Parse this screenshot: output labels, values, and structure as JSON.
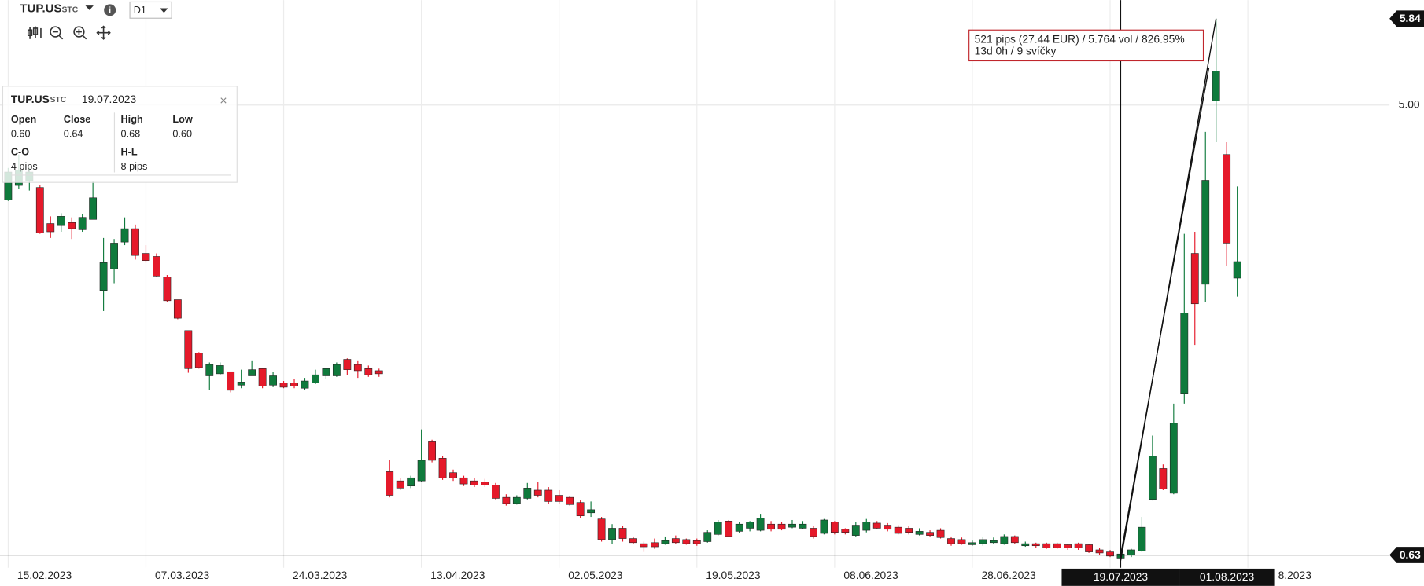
{
  "toolbar": {
    "symbol": "TUP.US",
    "market": "STC",
    "timeframe": "D1"
  },
  "tooltip": {
    "symbol": "TUP.US",
    "market": "STC",
    "date": "19.07.2023",
    "labels": [
      "Open",
      "Close",
      "High",
      "Low"
    ],
    "values": [
      "0.60",
      "0.64",
      "0.68",
      "0.60"
    ],
    "co_label": "C-O",
    "co_value": "4 pips",
    "hl_label": "H-L",
    "hl_value": "8 pips"
  },
  "measure": {
    "lines": [
      "521 pips (27.44 EUR) / 5.764 vol / 826.95%",
      "13d 0h / 9 svíčky"
    ]
  },
  "chart_data": {
    "type": "candlestick",
    "up_color": "#0f7a3c",
    "down_color": "#e5192a",
    "ylim": [
      0.33,
      6.02
    ],
    "yticks": [
      {
        "value": 5,
        "label": "5.00"
      }
    ],
    "grid": true,
    "crosshair_price": 0.63,
    "peak_price": 5.84,
    "categories": [
      "15.02.2023",
      null,
      null,
      null,
      null,
      null,
      null,
      null,
      null,
      null,
      null,
      null,
      null,
      "07.03.2023",
      null,
      null,
      null,
      null,
      null,
      null,
      null,
      null,
      null,
      null,
      null,
      null,
      "24.03.2023",
      null,
      null,
      null,
      null,
      null,
      null,
      null,
      null,
      null,
      null,
      null,
      null,
      "13.04.2023",
      null,
      null,
      null,
      null,
      null,
      null,
      null,
      null,
      null,
      null,
      null,
      null,
      "02.05.2023",
      null,
      null,
      null,
      null,
      null,
      null,
      null,
      null,
      null,
      null,
      null,
      null,
      "19.05.2023",
      null,
      null,
      null,
      null,
      null,
      null,
      null,
      null,
      null,
      null,
      null,
      null,
      "08.06.2023",
      null,
      null,
      null,
      null,
      null,
      null,
      null,
      null,
      null,
      null,
      null,
      null,
      "28.06.2023",
      null,
      null,
      null,
      null,
      null,
      null,
      null,
      null,
      null,
      null,
      null,
      null,
      null,
      "19.07.2023",
      null,
      null,
      null,
      null,
      null,
      null,
      null,
      null,
      "01.08.2023",
      null,
      null,
      "8.2023"
    ],
    "open": [
      4.08,
      4.22,
      4.26,
      4.2,
      3.85,
      3.83,
      3.86,
      3.79,
      3.89,
      3.2,
      3.41,
      3.67,
      3.8,
      3.56,
      3.53,
      3.33,
      3.11,
      2.81,
      2.59,
      2.37,
      2.39,
      2.41,
      2.28,
      2.37,
      2.44,
      2.28,
      2.3,
      2.3,
      2.25,
      2.3,
      2.37,
      2.37,
      2.53,
      2.48,
      2.44,
      2.42,
      1.44,
      1.35,
      1.3,
      1.35,
      1.73,
      1.57,
      1.43,
      1.38,
      1.35,
      1.34,
      1.31,
      1.19,
      1.13,
      1.18,
      1.26,
      1.26,
      1.21,
      1.19,
      1.14,
      1.04,
      0.98,
      0.78,
      0.89,
      0.79,
      0.74,
      0.75,
      0.74,
      0.79,
      0.78,
      0.77,
      0.76,
      0.83,
      0.96,
      0.86,
      0.89,
      0.87,
      0.93,
      0.93,
      0.9,
      0.89,
      0.89,
      0.84,
      0.95,
      0.88,
      0.82,
      0.87,
      0.94,
      0.92,
      0.9,
      0.89,
      0.83,
      0.85,
      0.87,
      0.79,
      0.78,
      0.73,
      0.74,
      0.75,
      0.74,
      0.81,
      0.72,
      0.74,
      0.74,
      0.74,
      0.73,
      0.74,
      0.73,
      0.68,
      0.66,
      0.6,
      0.63,
      0.67,
      1.17,
      1.47,
      1.23,
      2.2,
      3.56,
      3.26,
      5.04,
      4.52,
      3.32,
      null
    ],
    "high": [
      4.39,
      4.52,
      4.39,
      4.22,
      3.92,
      3.95,
      3.91,
      3.94,
      4.26,
      3.71,
      3.7,
      3.91,
      3.84,
      3.64,
      3.56,
      3.35,
      3.11,
      2.81,
      2.6,
      2.5,
      2.5,
      2.41,
      2.43,
      2.52,
      2.45,
      2.41,
      2.32,
      2.34,
      2.35,
      2.43,
      2.45,
      2.5,
      2.54,
      2.52,
      2.47,
      2.44,
      1.55,
      1.38,
      1.4,
      1.85,
      1.75,
      1.59,
      1.46,
      1.4,
      1.38,
      1.37,
      1.33,
      1.22,
      1.21,
      1.33,
      1.34,
      1.29,
      1.26,
      1.2,
      1.16,
      1.15,
      1.0,
      0.93,
      0.91,
      0.81,
      0.76,
      0.79,
      0.81,
      0.82,
      0.79,
      0.79,
      0.87,
      0.97,
      0.97,
      0.95,
      0.96,
      1.03,
      0.96,
      0.95,
      0.97,
      0.96,
      0.91,
      0.98,
      0.96,
      0.89,
      0.95,
      0.98,
      0.96,
      0.94,
      0.92,
      0.91,
      0.89,
      0.87,
      0.89,
      0.81,
      0.8,
      0.77,
      0.81,
      0.8,
      0.83,
      0.82,
      0.76,
      0.75,
      0.75,
      0.75,
      0.74,
      0.75,
      0.74,
      0.7,
      0.68,
      0.68,
      0.69,
      1.0,
      1.79,
      1.51,
      2.1,
      3.75,
      3.77,
      4.74,
      5.84,
      4.64,
      4.21,
      null
    ],
    "low": [
      4.07,
      4.19,
      4.17,
      3.75,
      3.71,
      3.77,
      3.7,
      3.77,
      3.89,
      3.0,
      3.27,
      3.64,
      3.5,
      3.47,
      3.33,
      3.09,
      2.92,
      2.4,
      2.44,
      2.23,
      2.38,
      2.21,
      2.25,
      2.37,
      2.25,
      2.26,
      2.25,
      2.25,
      2.23,
      2.29,
      2.34,
      2.36,
      2.38,
      2.35,
      2.36,
      2.36,
      1.19,
      1.26,
      1.28,
      1.34,
      1.53,
      1.36,
      1.35,
      1.3,
      1.29,
      1.29,
      1.17,
      1.11,
      1.12,
      1.17,
      1.19,
      1.13,
      1.13,
      1.11,
      0.99,
      1.0,
      0.76,
      0.74,
      0.76,
      0.74,
      0.66,
      0.69,
      0.73,
      0.74,
      0.73,
      0.72,
      0.75,
      0.82,
      0.81,
      0.84,
      0.86,
      0.86,
      0.86,
      0.87,
      0.89,
      0.88,
      0.79,
      0.83,
      0.83,
      0.83,
      0.81,
      0.85,
      0.88,
      0.86,
      0.83,
      0.83,
      0.82,
      0.81,
      0.79,
      0.72,
      0.73,
      0.72,
      0.72,
      0.74,
      0.73,
      0.74,
      0.71,
      0.7,
      0.69,
      0.69,
      0.68,
      0.68,
      0.65,
      0.63,
      0.61,
      0.6,
      0.61,
      0.66,
      1.16,
      1.26,
      1.22,
      2.1,
      2.67,
      3.09,
      4.64,
      3.44,
      3.14,
      null
    ],
    "close": [
      4.35,
      4.37,
      4.35,
      3.76,
      3.77,
      3.92,
      3.8,
      3.91,
      4.1,
      3.47,
      3.66,
      3.8,
      3.54,
      3.49,
      3.34,
      3.1,
      2.93,
      2.44,
      2.45,
      2.48,
      2.47,
      2.23,
      2.31,
      2.43,
      2.27,
      2.37,
      2.26,
      2.27,
      2.32,
      2.38,
      2.44,
      2.48,
      2.43,
      2.42,
      2.38,
      2.39,
      1.21,
      1.28,
      1.38,
      1.55,
      1.55,
      1.38,
      1.38,
      1.32,
      1.31,
      1.31,
      1.18,
      1.13,
      1.19,
      1.28,
      1.21,
      1.15,
      1.15,
      1.12,
      1.01,
      1.07,
      0.78,
      0.89,
      0.79,
      0.75,
      0.71,
      0.71,
      0.77,
      0.75,
      0.74,
      0.74,
      0.85,
      0.95,
      0.81,
      0.93,
      0.95,
      0.99,
      0.88,
      0.88,
      0.93,
      0.93,
      0.81,
      0.97,
      0.85,
      0.85,
      0.92,
      0.95,
      0.89,
      0.88,
      0.84,
      0.85,
      0.86,
      0.82,
      0.8,
      0.74,
      0.74,
      0.75,
      0.78,
      0.77,
      0.81,
      0.75,
      0.74,
      0.72,
      0.7,
      0.7,
      0.7,
      0.7,
      0.66,
      0.65,
      0.62,
      0.64,
      0.68,
      0.9,
      1.59,
      1.27,
      1.91,
      2.98,
      3.07,
      4.27,
      5.33,
      3.66,
      3.48,
      null
    ]
  }
}
